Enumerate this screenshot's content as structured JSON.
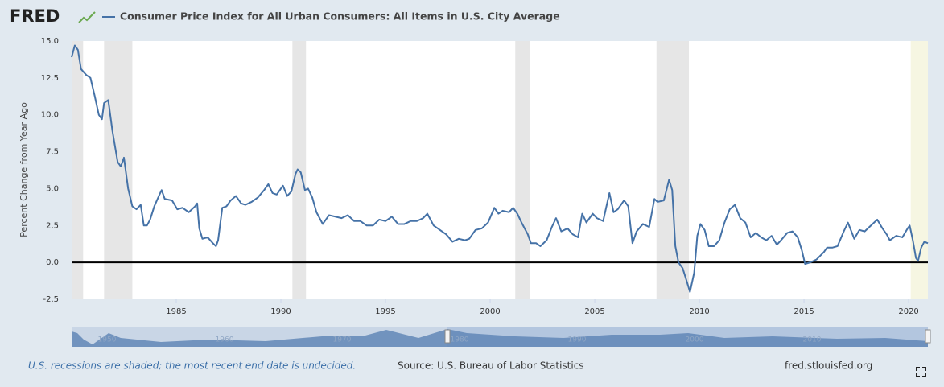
{
  "chart_data": {
    "type": "line",
    "logo": "FRED",
    "title": "Consumer Price Index for All Urban Consumers: All Items in U.S. City Average",
    "ylabel": "Percent Change from Year Ago",
    "note": "U.S. recessions are shaded; the most recent end date is undecided.",
    "source": "Source: U.S. Bureau of Labor Statistics",
    "url": "fred.stlouisfed.org",
    "xlim": [
      1980,
      2020.92
    ],
    "xticks": [
      1985,
      1990,
      1995,
      2000,
      2005,
      2010,
      2015,
      2020
    ],
    "ylim": [
      -2.5,
      15
    ],
    "yticks": [
      {
        "value": -2.5,
        "label": "-2.5"
      },
      {
        "value": 0,
        "label": "0.0"
      },
      {
        "value": 2.5,
        "label": "2.5"
      },
      {
        "value": 5,
        "label": "5.0"
      },
      {
        "value": 7.5,
        "label": "7.5"
      },
      {
        "value": 10,
        "label": "10.0"
      },
      {
        "value": 12.5,
        "label": "12.5"
      },
      {
        "value": 15,
        "label": "15.0"
      }
    ],
    "grid": false,
    "zero_line": true,
    "shading": [
      {
        "start": 1980.0,
        "end": 1980.55,
        "color": "#e6e6e6"
      },
      {
        "start": 1981.55,
        "end": 1982.9,
        "color": "#e6e6e6"
      },
      {
        "start": 1990.55,
        "end": 1991.2,
        "color": "#e6e6e6"
      },
      {
        "start": 2001.2,
        "end": 2001.9,
        "color": "#e6e6e6"
      },
      {
        "start": 2007.95,
        "end": 2009.5,
        "color": "#e6e6e6"
      },
      {
        "start": 2020.1,
        "end": 2020.92,
        "color": "#f6f6e2"
      }
    ],
    "navigator_labels": [
      "1950",
      "1960",
      "1970",
      "1980",
      "1990",
      "2000",
      "2010"
    ],
    "x": [
      1980.0,
      1980.15,
      1980.3,
      1980.45,
      1980.7,
      1980.9,
      1981.1,
      1981.3,
      1981.45,
      1981.55,
      1981.75,
      1981.95,
      1982.2,
      1982.35,
      1982.5,
      1982.7,
      1982.9,
      1983.1,
      1983.3,
      1983.45,
      1983.6,
      1983.75,
      1983.95,
      1984.2,
      1984.3,
      1984.45,
      1984.8,
      1985.05,
      1985.3,
      1985.6,
      1985.9,
      1986.0,
      1986.1,
      1986.25,
      1986.5,
      1986.75,
      1986.9,
      1987.0,
      1987.2,
      1987.4,
      1987.6,
      1987.85,
      1988.1,
      1988.3,
      1988.6,
      1988.9,
      1989.2,
      1989.4,
      1989.6,
      1989.8,
      1990.1,
      1990.3,
      1990.5,
      1990.7,
      1990.8,
      1990.95,
      1991.15,
      1991.3,
      1991.5,
      1991.7,
      1991.85,
      1992.0,
      1992.3,
      1992.6,
      1992.9,
      1993.2,
      1993.5,
      1993.8,
      1994.1,
      1994.4,
      1994.7,
      1995.0,
      1995.3,
      1995.6,
      1995.9,
      1996.2,
      1996.5,
      1996.8,
      1997.0,
      1997.3,
      1997.6,
      1997.9,
      1998.2,
      1998.5,
      1998.8,
      1999.0,
      1999.3,
      1999.6,
      1999.9,
      2000.2,
      2000.4,
      2000.6,
      2000.9,
      2001.1,
      2001.3,
      2001.5,
      2001.8,
      2001.95,
      2002.2,
      2002.4,
      2002.7,
      2002.95,
      2003.15,
      2003.4,
      2003.7,
      2003.95,
      2004.2,
      2004.4,
      2004.6,
      2004.9,
      2005.1,
      2005.4,
      2005.7,
      2005.9,
      2006.1,
      2006.4,
      2006.6,
      2006.8,
      2007.0,
      2007.3,
      2007.6,
      2007.85,
      2008.0,
      2008.3,
      2008.55,
      2008.7,
      2008.85,
      2009.0,
      2009.2,
      2009.4,
      2009.55,
      2009.75,
      2009.9,
      2010.05,
      2010.25,
      2010.45,
      2010.7,
      2010.95,
      2011.2,
      2011.45,
      2011.7,
      2011.95,
      2012.2,
      2012.45,
      2012.7,
      2012.95,
      2013.2,
      2013.45,
      2013.7,
      2013.9,
      2014.2,
      2014.45,
      2014.7,
      2014.9,
      2015.05,
      2015.3,
      2015.6,
      2015.95,
      2016.1,
      2016.35,
      2016.6,
      2016.9,
      2017.1,
      2017.4,
      2017.65,
      2017.9,
      2018.2,
      2018.5,
      2018.75,
      2018.95,
      2019.1,
      2019.4,
      2019.7,
      2019.95,
      2020.05,
      2020.2,
      2020.35,
      2020.45,
      2020.6,
      2020.75,
      2020.92
    ],
    "series": [
      {
        "name": "Consumer Price Index for All Urban Consumers: All Items in U.S. City Average",
        "color": "#4572a7",
        "values": [
          13.9,
          14.7,
          14.4,
          13.1,
          12.7,
          12.5,
          11.3,
          10.0,
          9.7,
          10.8,
          11.0,
          8.9,
          6.8,
          6.5,
          7.1,
          5.0,
          3.8,
          3.6,
          3.9,
          2.5,
          2.5,
          2.9,
          3.8,
          4.6,
          4.9,
          4.3,
          4.2,
          3.6,
          3.7,
          3.4,
          3.8,
          4.0,
          2.3,
          1.6,
          1.7,
          1.3,
          1.1,
          1.5,
          3.7,
          3.8,
          4.2,
          4.5,
          4.0,
          3.9,
          4.1,
          4.4,
          4.9,
          5.3,
          4.7,
          4.6,
          5.2,
          4.5,
          4.8,
          6.0,
          6.3,
          6.1,
          4.9,
          5.0,
          4.4,
          3.4,
          3.0,
          2.6,
          3.2,
          3.1,
          3.0,
          3.2,
          2.8,
          2.8,
          2.5,
          2.5,
          2.9,
          2.8,
          3.1,
          2.6,
          2.6,
          2.8,
          2.8,
          3.0,
          3.3,
          2.5,
          2.2,
          1.9,
          1.4,
          1.6,
          1.5,
          1.6,
          2.2,
          2.3,
          2.7,
          3.7,
          3.3,
          3.5,
          3.4,
          3.7,
          3.3,
          2.7,
          1.9,
          1.3,
          1.3,
          1.1,
          1.5,
          2.4,
          3.0,
          2.1,
          2.3,
          1.9,
          1.7,
          3.3,
          2.7,
          3.3,
          3.0,
          2.8,
          4.7,
          3.4,
          3.6,
          4.2,
          3.8,
          1.3,
          2.1,
          2.6,
          2.4,
          4.3,
          4.1,
          4.2,
          5.6,
          4.9,
          1.1,
          0.0,
          -0.4,
          -1.3,
          -2.0,
          -0.7,
          1.8,
          2.6,
          2.2,
          1.1,
          1.1,
          1.5,
          2.7,
          3.6,
          3.9,
          3.0,
          2.7,
          1.7,
          2.0,
          1.7,
          1.5,
          1.8,
          1.2,
          1.5,
          2.0,
          2.1,
          1.7,
          0.8,
          -0.1,
          0.0,
          0.2,
          0.7,
          1.0,
          1.0,
          1.1,
          2.1,
          2.7,
          1.6,
          2.2,
          2.1,
          2.5,
          2.9,
          2.3,
          1.9,
          1.5,
          1.8,
          1.7,
          2.3,
          2.5,
          1.5,
          0.3,
          0.1,
          1.0,
          1.4,
          1.3
        ]
      }
    ]
  }
}
